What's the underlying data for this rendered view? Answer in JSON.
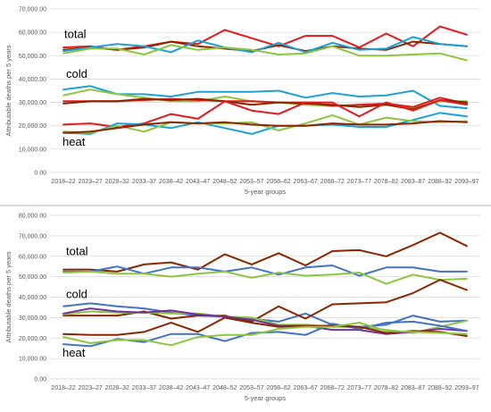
{
  "chart_data": [
    {
      "type": "line",
      "xlabel": "5-year groups",
      "ylabel": "Attributable deaths per 5 years",
      "ylim": [
        0,
        70000
      ],
      "yticks": [
        0,
        10000,
        20000,
        30000,
        40000,
        50000,
        60000,
        70000
      ],
      "ytick_labels": [
        "0.00",
        "10,000.00",
        "20,000.00",
        "30,000.00",
        "40,000.00",
        "50,000.00",
        "60,000.00",
        "70,000.00"
      ],
      "grid": true,
      "categories": [
        "2018–22",
        "2023–27",
        "2028–32",
        "2033–37",
        "2038–42",
        "2043–47",
        "2048–52",
        "2053–57",
        "2058–62",
        "2063–67",
        "2068–72",
        "2073–77",
        "2078–82",
        "2083–87",
        "2088–92",
        "2093–97"
      ],
      "annotations": [
        "total",
        "cold",
        "heat"
      ],
      "series": [
        {
          "color": "#e31a1c",
          "values": [
            53500,
            54000,
            52500,
            54000,
            56000,
            55000,
            61000,
            57500,
            54000,
            58500,
            58500,
            53500,
            59500,
            54000,
            62500,
            59000
          ]
        },
        {
          "color": "#8b2500",
          "values": [
            52500,
            53500,
            52500,
            53500,
            56000,
            54000,
            53000,
            52000,
            54500,
            52000,
            54000,
            53000,
            52500,
            56000,
            55000,
            54000
          ]
        },
        {
          "color": "#1ba1d8",
          "values": [
            52000,
            53500,
            55000,
            54000,
            51500,
            56500,
            53500,
            51500,
            55500,
            51500,
            55500,
            52500,
            53000,
            58000,
            55000,
            54000
          ]
        },
        {
          "color": "#8cc63f",
          "values": [
            51000,
            53000,
            53000,
            50500,
            54500,
            52500,
            53500,
            52500,
            50500,
            51000,
            54000,
            50000,
            50000,
            50500,
            51000,
            48000
          ]
        },
        {
          "color": "#1ba1d8",
          "values": [
            35500,
            37000,
            33500,
            33500,
            32500,
            34500,
            34500,
            34500,
            35000,
            32000,
            34000,
            32500,
            33000,
            35000,
            28500,
            27500
          ]
        },
        {
          "color": "#8cc63f",
          "values": [
            33000,
            35500,
            33500,
            32000,
            30500,
            30500,
            32500,
            30500,
            30000,
            29000,
            28500,
            29000,
            29000,
            27500,
            30500,
            30500
          ]
        },
        {
          "color": "#e31a1c",
          "values": [
            30500,
            30500,
            30500,
            31000,
            31500,
            31000,
            30500,
            30500,
            30000,
            30000,
            28500,
            29000,
            29500,
            28000,
            32000,
            29500
          ]
        },
        {
          "color": "#8b2500",
          "values": [
            29500,
            30500,
            30500,
            31500,
            31000,
            31500,
            30500,
            29000,
            30000,
            29500,
            29000,
            28000,
            29000,
            27000,
            31000,
            30000
          ]
        },
        {
          "color": "#e31a1c",
          "values": [
            20500,
            21000,
            19500,
            21000,
            25000,
            23000,
            30500,
            26500,
            25000,
            30000,
            30000,
            24000,
            30000,
            26500,
            31000,
            29000
          ]
        },
        {
          "color": "#1ba1d8",
          "values": [
            17000,
            16500,
            21000,
            20500,
            19000,
            21500,
            19000,
            16500,
            20000,
            20000,
            20500,
            19500,
            19500,
            22500,
            25500,
            24000
          ]
        },
        {
          "color": "#8cc63f",
          "values": [
            17500,
            17000,
            20000,
            17500,
            21500,
            21000,
            21000,
            21500,
            18000,
            21000,
            24500,
            20500,
            23500,
            22000,
            21500,
            22000
          ]
        },
        {
          "color": "#8b2500",
          "values": [
            17000,
            17500,
            19000,
            20500,
            21500,
            21000,
            21500,
            20500,
            20000,
            20000,
            21000,
            20500,
            20500,
            21000,
            22000,
            21500
          ]
        }
      ]
    },
    {
      "type": "line",
      "xlabel": "5-year groups",
      "ylabel": "Attributable deaths per 5 years",
      "ylim": [
        0,
        80000
      ],
      "yticks": [
        0,
        10000,
        20000,
        30000,
        40000,
        50000,
        60000,
        70000,
        80000
      ],
      "ytick_labels": [
        "0.00",
        "10,000.00",
        "20,000.00",
        "30,000.00",
        "40,000.00",
        "50,000.00",
        "60,000.00",
        "70,000.00",
        "80,000.00"
      ],
      "grid": true,
      "categories": [
        "2018–22",
        "2023–27",
        "2028–32",
        "2033–37",
        "2038–42",
        "2043–47",
        "2048–52",
        "2053–57",
        "2058–62",
        "2063–67",
        "2068–72",
        "2073–77",
        "2078–82",
        "2083–87",
        "2088–92",
        "2093–97"
      ],
      "annotations": [
        "total",
        "cold",
        "heat"
      ],
      "series": [
        {
          "color": "#8b2500",
          "values": [
            53500,
            53500,
            52500,
            56000,
            57000,
            53500,
            61000,
            56000,
            61500,
            55500,
            62500,
            63000,
            60000,
            65500,
            71500,
            65000
          ]
        },
        {
          "color": "#4472c4",
          "values": [
            52500,
            52500,
            55000,
            51500,
            54500,
            54500,
            52500,
            54500,
            51000,
            54500,
            55500,
            50500,
            54500,
            54500,
            52500,
            52500
          ]
        },
        {
          "color": "#8cc63f",
          "values": [
            52000,
            52500,
            51500,
            51500,
            50000,
            51500,
            52500,
            49500,
            52000,
            50500,
            51000,
            52000,
            46500,
            51000,
            48500,
            49000
          ]
        },
        {
          "color": "#4472c4",
          "values": [
            35500,
            37000,
            35500,
            34500,
            32500,
            31000,
            30500,
            29500,
            28000,
            32000,
            26500,
            25500,
            26500,
            31000,
            28000,
            28500
          ]
        },
        {
          "color": "#8b2500",
          "values": [
            31000,
            31000,
            31000,
            33000,
            29500,
            31000,
            31000,
            28000,
            35500,
            29500,
            36500,
            37000,
            37500,
            42000,
            48500,
            43500
          ]
        },
        {
          "color": "#8cc63f",
          "values": [
            31500,
            33000,
            32500,
            32500,
            32000,
            32000,
            30500,
            30000,
            26500,
            26500,
            25500,
            25500,
            24000,
            22500,
            25500,
            28500
          ]
        },
        {
          "color": "#7030a0",
          "values": [
            32000,
            34500,
            33000,
            32500,
            33500,
            31500,
            30500,
            29000,
            26000,
            26000,
            24000,
            24000,
            22000,
            23000,
            24500,
            23500
          ]
        },
        {
          "color": "#4472c4",
          "values": [
            17000,
            16000,
            19500,
            18000,
            22000,
            22000,
            18500,
            22500,
            23000,
            21500,
            27000,
            24500,
            27500,
            28000,
            26000,
            23500
          ]
        },
        {
          "color": "#8b2500",
          "values": [
            22000,
            21500,
            21500,
            23000,
            27500,
            23000,
            30000,
            27500,
            25500,
            26000,
            26000,
            25500,
            22500,
            23500,
            23000,
            21000
          ]
        },
        {
          "color": "#8cc63f",
          "values": [
            20500,
            17500,
            19000,
            19000,
            16500,
            20500,
            21500,
            21500,
            24500,
            25500,
            25500,
            27500,
            23500,
            23000,
            22500,
            22000
          ]
        }
      ]
    }
  ]
}
